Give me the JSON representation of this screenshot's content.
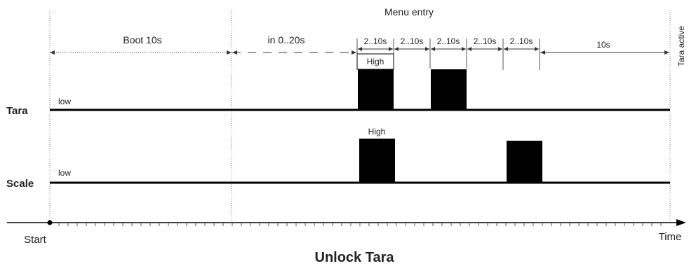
{
  "title": "Unlock Tara",
  "top_label": "Menu entry",
  "side_label": "Tara active",
  "segments": {
    "boot": "Boot 10s",
    "wait": "in 0..20s",
    "s1": "2..10s",
    "s2": "2..10s",
    "s3": "2..10s",
    "s4": "2..10s",
    "s5": "2..10s",
    "final": "10s"
  },
  "signals": {
    "tara": {
      "name": "Tara",
      "low_label": "low",
      "high_label": "High"
    },
    "scale": {
      "name": "Scale",
      "low_label": "low",
      "high_label": "High"
    }
  },
  "axis": {
    "start": "Start",
    "end": "Time"
  },
  "colors": {
    "line": "#000000",
    "pulse": "#000000",
    "guide": "#777777",
    "dim": "#333333"
  }
}
